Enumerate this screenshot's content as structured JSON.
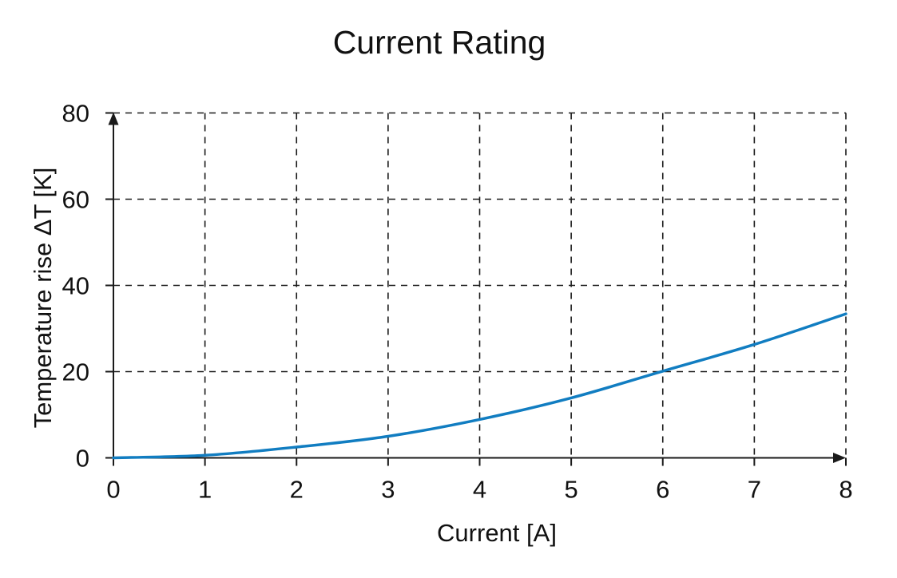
{
  "chart_data": {
    "type": "line",
    "title": "Current Rating",
    "xlabel": "Current [A]",
    "ylabel": "Temperature rise ΔT [K]",
    "xlim": [
      0,
      8
    ],
    "ylim": [
      0,
      80
    ],
    "xticks": [
      0,
      1,
      2,
      3,
      4,
      5,
      6,
      7,
      8
    ],
    "yticks": [
      0,
      20,
      40,
      60,
      80
    ],
    "grid": "dashed",
    "legend": "none",
    "axis_arrows": true,
    "series": [
      {
        "x": [
          0,
          1,
          2,
          3,
          4,
          5,
          6,
          7,
          8
        ],
        "y": [
          0,
          0.6,
          2.5,
          5.0,
          8.9,
          13.9,
          20.1,
          26.3,
          33.4
        ]
      }
    ]
  },
  "colors": {
    "curve": "#117dc1",
    "axis": "#1a1a1a",
    "grid": "#1a1a1a",
    "text": "#111111",
    "background": "#ffffff"
  }
}
